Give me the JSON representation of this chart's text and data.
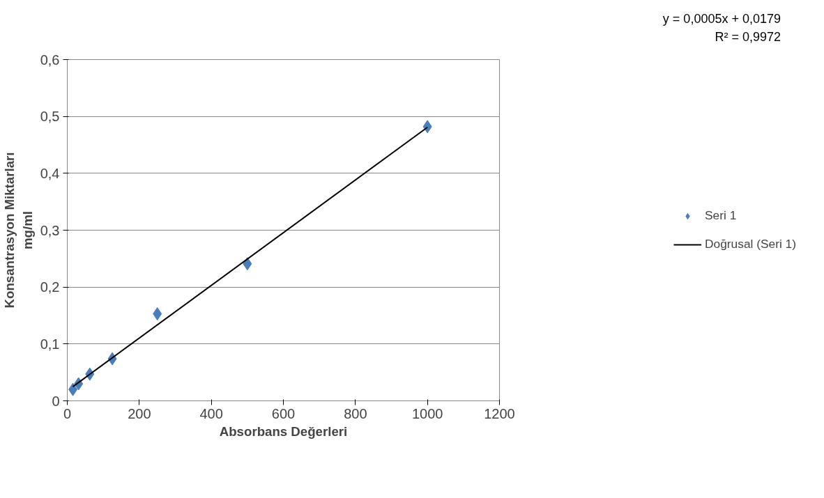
{
  "chart_data": {
    "type": "scatter",
    "xlabel": "Absorbans Değerleri",
    "ylabel": "Konsantrasyon Miktarları\nmg/ml",
    "xlim": [
      0,
      1200
    ],
    "xticks": [
      0,
      200,
      400,
      600,
      800,
      1000,
      1200
    ],
    "ylim": [
      0,
      0.6
    ],
    "yticks": [
      {
        "value": 0,
        "label": "0"
      },
      {
        "value": 0.1,
        "label": "0,1"
      },
      {
        "value": 0.2,
        "label": "0,2"
      },
      {
        "value": 0.3,
        "label": "0,3"
      },
      {
        "value": 0.4,
        "label": "0,4"
      },
      {
        "value": 0.5,
        "label": "0,5"
      },
      {
        "value": 0.6,
        "label": "0,6"
      }
    ],
    "grid": "y",
    "legend": "right",
    "annotations": [
      "y = 0,0005x + 0,0179\nR² = 0,9972"
    ],
    "series": [
      {
        "name": "Seri 1",
        "marker": "diamond",
        "color": "#4a7ebb",
        "x": [
          15.625,
          31.25,
          62.5,
          125,
          250,
          500,
          1000
        ],
        "values": [
          0.02,
          0.03,
          0.047,
          0.074,
          0.153,
          0.241,
          0.482
        ]
      },
      {
        "name": "Doğrusal (Seri 1)",
        "type": "line",
        "color": "#000000",
        "line_style": "solid",
        "marker": "none",
        "x": [
          15.625,
          1000
        ],
        "values": [
          0.025,
          0.481
        ]
      }
    ]
  }
}
